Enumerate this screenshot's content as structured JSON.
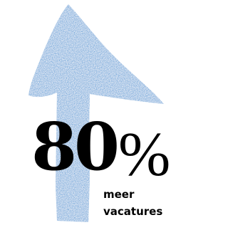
{
  "headline": {
    "number": "80",
    "unit": "%"
  },
  "caption": [
    "meer",
    "vacatures"
  ]
}
